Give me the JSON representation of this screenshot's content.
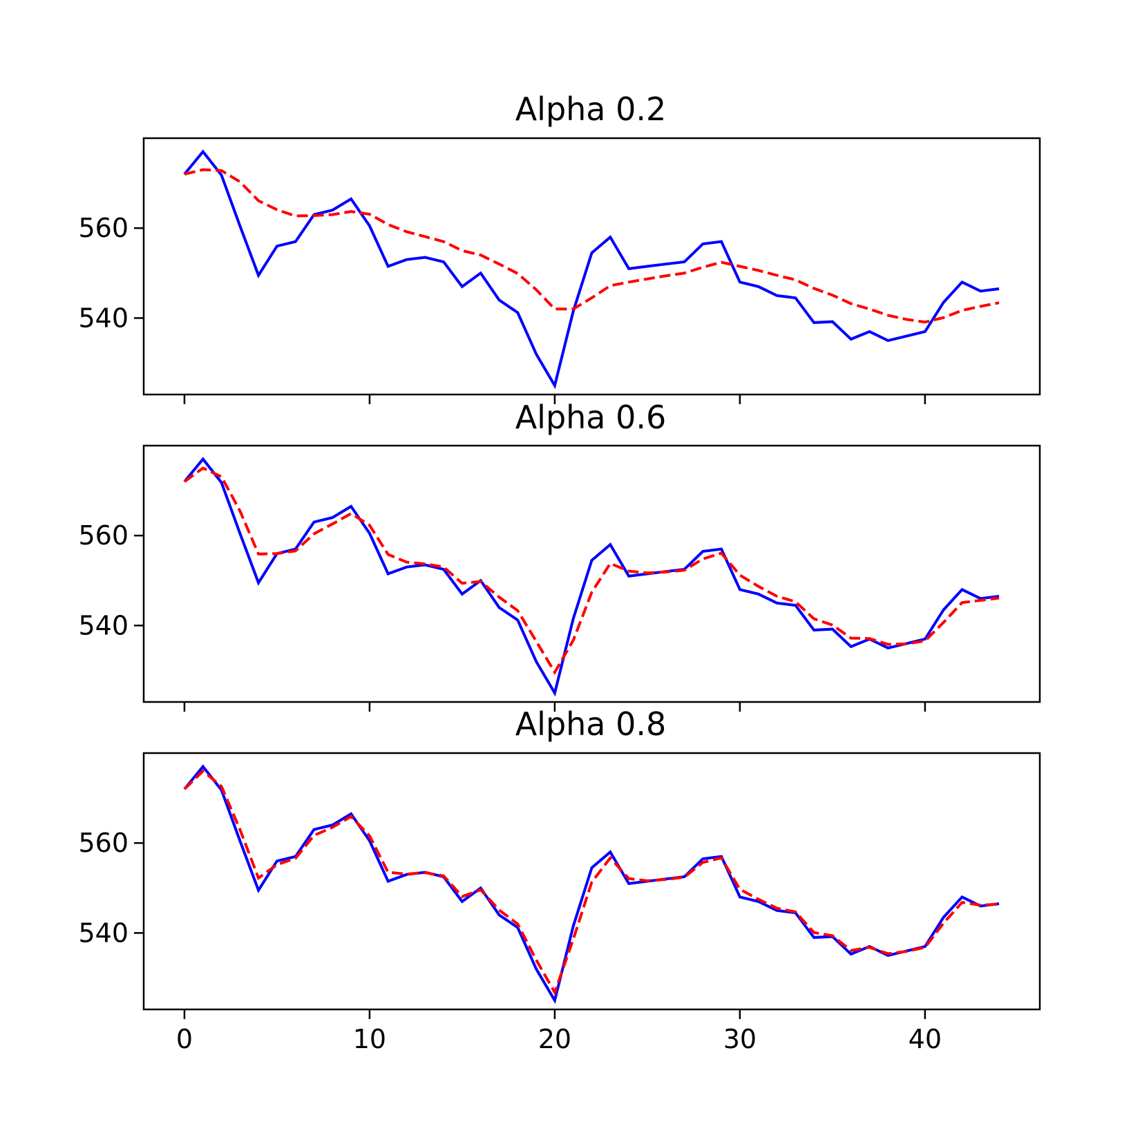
{
  "chart_data": {
    "type": "line",
    "layout": "3 stacked subplots, shared x-axis",
    "x": [
      0,
      1,
      2,
      3,
      4,
      5,
      6,
      7,
      8,
      9,
      10,
      11,
      12,
      13,
      14,
      15,
      16,
      17,
      18,
      19,
      20,
      21,
      22,
      23,
      24,
      25,
      26,
      27,
      28,
      29,
      30,
      31,
      32,
      33,
      34,
      35,
      36,
      37,
      38,
      39,
      40,
      41,
      42,
      43,
      44
    ],
    "xlim": [
      -2.2,
      46.2
    ],
    "xticks": [
      0,
      10,
      20,
      30,
      40
    ],
    "xtick_labels": [
      "0",
      "10",
      "20",
      "30",
      "40"
    ],
    "ylim": [
      523.0,
      580.0
    ],
    "yticks": [
      560,
      540
    ],
    "ytick_labels": [
      "560",
      "540"
    ],
    "grid": false,
    "colors": {
      "original": "#0000ff",
      "smoothed": "#ff0000",
      "axes": "#000000"
    },
    "original": [
      572.0,
      577.0,
      571.8,
      560.5,
      549.5,
      556.0,
      557.0,
      563.0,
      564.0,
      566.5,
      560.5,
      551.5,
      553.0,
      553.5,
      552.5,
      547.0,
      550.0,
      544.0,
      541.2,
      532.0,
      525.0,
      541.5,
      554.5,
      558.0,
      551.0,
      551.5,
      552.0,
      552.5,
      556.5,
      557.0,
      548.0,
      547.0,
      545.0,
      544.5,
      539.0,
      539.2,
      535.3,
      537.0,
      535.0,
      536.0,
      537.0,
      543.5,
      548.0,
      546.0,
      546.5
    ],
    "panels": [
      {
        "title": "Alpha 0.2",
        "series": [
          {
            "style": "solid",
            "color": "#0000ff",
            "values": "original"
          },
          {
            "style": "dashed",
            "color": "#ff0000",
            "values": [
              572.0,
              573.0,
              572.8,
              570.3,
              566.1,
              564.1,
              562.7,
              562.8,
              563.0,
              563.7,
              563.1,
              560.8,
              559.2,
              558.1,
              557.0,
              555.0,
              554.0,
              552.0,
              549.9,
              546.3,
              542.0,
              542.0,
              544.5,
              547.2,
              548.0,
              548.7,
              549.4,
              550.0,
              551.3,
              552.4,
              551.5,
              550.6,
              549.5,
              548.5,
              546.6,
              545.1,
              543.2,
              542.0,
              540.6,
              539.7,
              539.1,
              540.1,
              541.7,
              542.6,
              543.4
            ]
          }
        ]
      },
      {
        "title": "Alpha 0.6",
        "series": [
          {
            "style": "solid",
            "color": "#0000ff",
            "values": "original"
          },
          {
            "style": "dashed",
            "color": "#ff0000",
            "values": [
              572.0,
              575.0,
              573.1,
              565.5,
              555.9,
              556.0,
              556.6,
              560.4,
              562.6,
              564.9,
              562.3,
              555.8,
              554.1,
              553.7,
              553.0,
              549.4,
              549.8,
              546.3,
              543.3,
              536.5,
              529.6,
              536.7,
              547.4,
              553.8,
              552.1,
              551.7,
              551.9,
              552.3,
              554.8,
              556.1,
              551.2,
              548.7,
              546.5,
              545.3,
              541.5,
              540.1,
              537.2,
              537.1,
              535.8,
              535.9,
              536.6,
              540.7,
              545.1,
              545.6,
              546.1
            ]
          }
        ]
      },
      {
        "title": "Alpha 0.8",
        "series": [
          {
            "style": "solid",
            "color": "#0000ff",
            "values": "original"
          },
          {
            "style": "dashed",
            "color": "#ff0000",
            "values": [
              572.0,
              576.0,
              572.6,
              563.0,
              552.2,
              555.2,
              556.6,
              561.7,
              563.5,
              565.9,
              561.6,
              553.5,
              553.1,
              553.4,
              552.7,
              548.1,
              549.6,
              545.1,
              542.0,
              534.0,
              526.8,
              538.6,
              551.3,
              556.7,
              552.1,
              551.6,
              551.9,
              552.4,
              555.7,
              556.7,
              549.7,
              547.5,
              545.5,
              544.7,
              540.1,
              539.4,
              536.1,
              536.8,
              535.4,
              535.9,
              536.8,
              542.2,
              546.8,
              546.2,
              546.4
            ]
          }
        ]
      }
    ]
  }
}
